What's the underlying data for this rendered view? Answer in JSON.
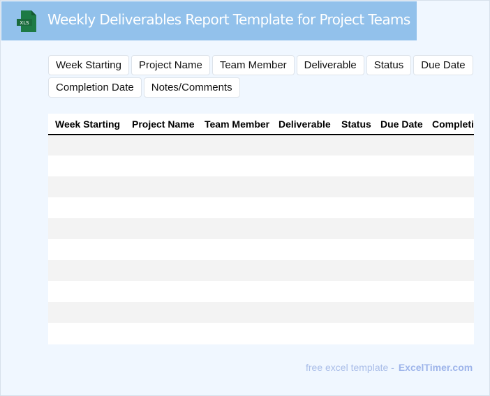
{
  "header": {
    "title": "Weekly Deliverables Report Template for Project Teams",
    "icon": "xls-file-icon",
    "icon_label": "XLS",
    "bg_color": "#92c1eb"
  },
  "fields": [
    "Week Starting",
    "Project Name",
    "Team Member",
    "Deliverable",
    "Status",
    "Due Date",
    "Completion Date",
    "Notes/Comments"
  ],
  "table": {
    "columns": [
      "Week Starting",
      "Project Name",
      "Team Member",
      "Deliverable",
      "Status",
      "Due Date",
      "Completion Date"
    ],
    "row_count": 10
  },
  "footer": {
    "text": "free excel template -",
    "brand": "ExcelTimer.com"
  }
}
